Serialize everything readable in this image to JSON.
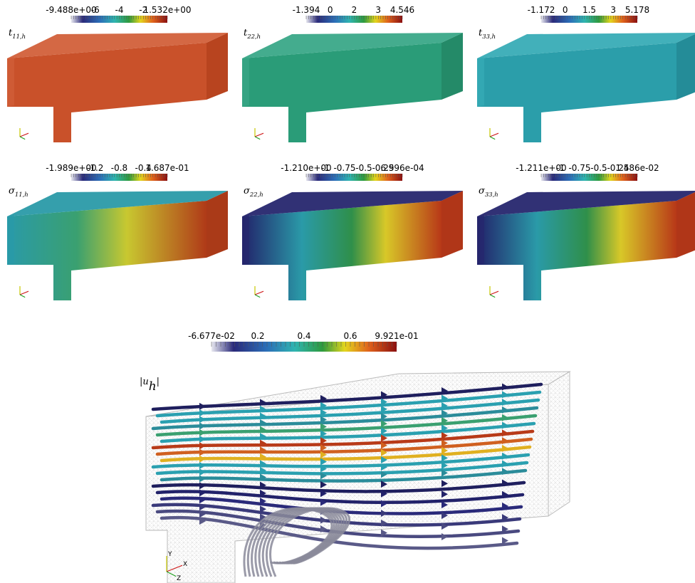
{
  "panels": [
    {
      "label": {
        "base": "t",
        "sub": "11,h"
      },
      "colorbar": {
        "ticks": [
          "-9.488e+00",
          "-6",
          "-4",
          "-2",
          "1.532e+00"
        ]
      }
    },
    {
      "label": {
        "base": "t",
        "sub": "22,h"
      },
      "colorbar": {
        "ticks": [
          "-1.394",
          "0",
          "2",
          "3",
          "4.546"
        ]
      }
    },
    {
      "label": {
        "base": "t",
        "sub": "33,h"
      },
      "colorbar": {
        "ticks": [
          "-1.172",
          "0",
          "1.5",
          "3",
          "5.178"
        ]
      }
    },
    {
      "label": {
        "base": "σ",
        "sub": "11,h"
      },
      "colorbar": {
        "ticks": [
          "-1.989e+00",
          "-1.2",
          "-0.8",
          "-0.4",
          "1.687e-01"
        ]
      }
    },
    {
      "label": {
        "base": "σ",
        "sub": "22,h"
      },
      "colorbar": {
        "ticks": [
          "-1.210e+00",
          "-1",
          "-0.75",
          "-0.5",
          "-0.25",
          "6.996e-04"
        ]
      }
    },
    {
      "label": {
        "base": "σ",
        "sub": "33,h"
      },
      "colorbar": {
        "ticks": [
          "-1.211e+00",
          "-1",
          "-0.75",
          "-0.5",
          "-0.25",
          "1.486e-02"
        ]
      }
    }
  ],
  "velocity": {
    "label": {
      "base": "|u",
      "sub": "h",
      "end": "|"
    },
    "colorbar": {
      "ticks": [
        "-6.677e-02",
        "0.2",
        "0.4",
        "0.6",
        "9.921e-01"
      ]
    },
    "triad": [
      "Y",
      "X",
      "Z"
    ]
  }
}
